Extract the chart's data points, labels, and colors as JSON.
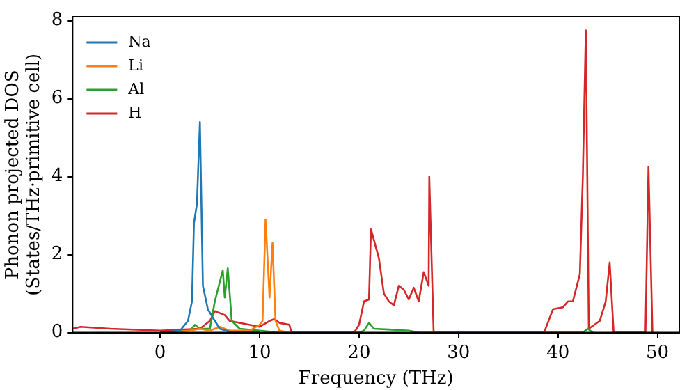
{
  "chart_data": {
    "type": "line",
    "xlabel": "Frequency (THz)",
    "ylabel": "Phonon projected DOS\n(States/THz·primitive cell)",
    "xlim": [
      -8.8,
      52.2
    ],
    "ylim": [
      0,
      8.1
    ],
    "xticks": [
      0,
      10,
      20,
      30,
      40,
      50
    ],
    "yticks": [
      0,
      2,
      4,
      6,
      8
    ],
    "grid": false,
    "legend": "top left",
    "marker": "none",
    "line_style": "solid",
    "series": [
      {
        "name": "Na",
        "color": "#1f77b4",
        "x": [
          0,
          2,
          2.8,
          3.2,
          3.4,
          3.7,
          4.0,
          4.3,
          4.8,
          5.5,
          6,
          7,
          10
        ],
        "values": [
          0,
          0.05,
          0.3,
          0.8,
          2.8,
          3.3,
          5.4,
          1.2,
          0.6,
          0.3,
          0.1,
          0.02,
          0.02
        ]
      },
      {
        "name": "Li",
        "color": "#ff7f0e",
        "x": [
          0,
          3,
          4,
          5,
          6,
          7,
          9,
          10,
          10.3,
          10.6,
          11.0,
          11.3,
          11.6,
          12,
          13
        ],
        "values": [
          0,
          0.05,
          0.1,
          0.05,
          0.15,
          0.05,
          0.05,
          0.2,
          0.3,
          2.9,
          0.9,
          2.3,
          0.3,
          0.05,
          0
        ]
      },
      {
        "name": "Al",
        "color": "#2ca02c",
        "x": [
          0,
          3,
          3.5,
          4,
          5,
          5.5,
          6.3,
          6.5,
          6.8,
          7.2,
          8,
          10,
          12,
          20,
          20.5,
          21,
          21.5,
          23,
          25,
          26,
          42.5,
          43,
          43.5
        ],
        "values": [
          0,
          0.05,
          0.2,
          0.1,
          0.1,
          0.8,
          1.6,
          0.9,
          1.65,
          0.3,
          0.1,
          0.05,
          0,
          0,
          0.05,
          0.25,
          0.1,
          0.08,
          0.05,
          0,
          0,
          0.1,
          0
        ]
      },
      {
        "name": "H",
        "color": "#d62728",
        "x": [
          -8.8,
          -8,
          -5,
          0,
          4,
          5,
          5.5,
          6.5,
          7,
          10,
          11,
          11.5,
          12,
          13,
          13.2,
          19.5,
          20,
          20.5,
          21,
          21.2,
          22,
          22.5,
          23,
          23.5,
          24,
          24.5,
          25,
          25.5,
          26,
          26.5,
          27,
          27.06,
          27.5,
          30,
          38.6,
          39.5,
          40.5,
          41,
          41.5,
          42.2,
          42.5,
          42.8,
          43.1,
          44.2,
          44.8,
          45.2,
          45.6,
          48.8,
          49.1,
          49.5
        ],
        "values": [
          0.1,
          0.15,
          0.1,
          0.05,
          0.1,
          0.3,
          0.55,
          0.45,
          0.3,
          0.15,
          0.3,
          0.35,
          0.25,
          0.2,
          0,
          0,
          0.2,
          0.8,
          0.85,
          2.65,
          1.9,
          1.0,
          0.8,
          0.7,
          1.2,
          1.1,
          0.85,
          1.15,
          0.8,
          1.55,
          1.2,
          4.0,
          0,
          0,
          0,
          0.6,
          0.65,
          0.8,
          0.8,
          1.5,
          4,
          7.75,
          0.1,
          0.3,
          0.8,
          1.8,
          0,
          0,
          4.25,
          0
        ]
      }
    ]
  }
}
